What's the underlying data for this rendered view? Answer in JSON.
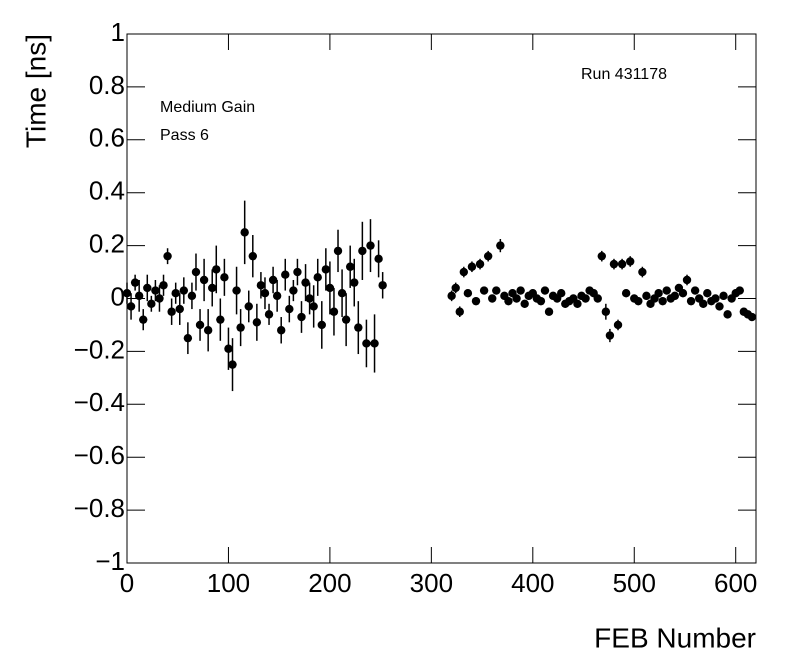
{
  "chart_data": {
    "type": "errorbar-scatter",
    "xlabel": "FEB Number",
    "ylabel": "Time [ns]",
    "annotations": [
      "Medium Gain",
      "Pass 6",
      "Run 431178"
    ],
    "xlim": [
      0,
      620
    ],
    "ylim": [
      -1,
      1
    ],
    "xticks": [
      0,
      100,
      200,
      300,
      400,
      500,
      600
    ],
    "yticks": [
      {
        "value": -1,
        "label": "−1"
      },
      {
        "value": -0.8,
        "label": "−0.8"
      },
      {
        "value": -0.6,
        "label": "−0.6"
      },
      {
        "value": -0.4,
        "label": "−0.4"
      },
      {
        "value": -0.2,
        "label": "−0.2"
      },
      0,
      0.2,
      0.4,
      0.6,
      0.8,
      1
    ],
    "color": "#000000",
    "x": [
      0,
      4,
      8,
      12,
      16,
      20,
      24,
      28,
      32,
      36,
      40,
      44,
      48,
      52,
      56,
      60,
      64,
      68,
      72,
      76,
      80,
      84,
      88,
      92,
      96,
      100,
      104,
      108,
      112,
      116,
      120,
      124,
      128,
      132,
      136,
      140,
      144,
      148,
      152,
      156,
      160,
      164,
      168,
      172,
      176,
      180,
      184,
      188,
      192,
      196,
      200,
      204,
      208,
      212,
      216,
      220,
      224,
      228,
      232,
      236,
      240,
      244,
      248,
      252,
      320,
      324,
      328,
      332,
      336,
      340,
      344,
      348,
      352,
      356,
      360,
      364,
      368,
      372,
      376,
      380,
      384,
      388,
      392,
      396,
      400,
      404,
      408,
      412,
      416,
      420,
      424,
      428,
      432,
      436,
      440,
      444,
      448,
      452,
      456,
      460,
      464,
      468,
      472,
      476,
      480,
      484,
      488,
      492,
      496,
      500,
      504,
      508,
      512,
      516,
      520,
      524,
      528,
      532,
      536,
      540,
      544,
      548,
      552,
      556,
      560,
      564,
      568,
      572,
      576,
      580,
      584,
      588,
      592,
      596,
      600,
      604,
      608,
      612,
      616
    ],
    "values": [
      0.02,
      -0.03,
      0.06,
      0.01,
      -0.08,
      0.04,
      -0.02,
      0.03,
      0.0,
      0.05,
      0.16,
      -0.05,
      0.02,
      -0.04,
      0.03,
      -0.15,
      0.01,
      0.1,
      -0.1,
      0.07,
      -0.12,
      0.04,
      0.11,
      -0.08,
      0.08,
      -0.19,
      -0.25,
      0.03,
      -0.11,
      0.25,
      -0.03,
      0.16,
      -0.09,
      0.05,
      0.02,
      -0.06,
      0.07,
      0.01,
      -0.12,
      0.09,
      -0.04,
      0.03,
      0.1,
      -0.07,
      0.06,
      0.0,
      -0.03,
      0.08,
      -0.1,
      0.11,
      0.04,
      -0.05,
      0.18,
      0.02,
      -0.08,
      0.12,
      0.06,
      -0.11,
      0.18,
      -0.17,
      0.2,
      -0.17,
      0.15,
      0.05,
      0.01,
      0.04,
      -0.05,
      0.1,
      0.02,
      0.12,
      -0.01,
      0.13,
      0.03,
      0.16,
      0.0,
      0.03,
      0.2,
      0.01,
      -0.01,
      0.02,
      0.0,
      0.03,
      -0.02,
      0.01,
      0.02,
      0.0,
      -0.01,
      0.03,
      -0.05,
      0.01,
      0.0,
      0.02,
      -0.02,
      -0.01,
      0.0,
      -0.02,
      0.01,
      0.0,
      0.03,
      0.02,
      0.0,
      0.16,
      -0.05,
      -0.14,
      0.13,
      -0.1,
      0.13,
      0.02,
      0.14,
      0.0,
      -0.01,
      0.1,
      0.01,
      -0.02,
      0.0,
      0.02,
      -0.01,
      0.03,
      0.0,
      0.01,
      0.04,
      0.02,
      0.07,
      -0.01,
      0.03,
      0.0,
      -0.02,
      0.02,
      -0.01,
      0.0,
      -0.03,
      0.01,
      -0.06,
      0.0,
      0.02,
      0.03,
      -0.05,
      -0.06,
      -0.07
    ],
    "errors": [
      0.04,
      0.05,
      0.03,
      0.06,
      0.04,
      0.05,
      0.03,
      0.04,
      0.05,
      0.04,
      0.03,
      0.05,
      0.04,
      0.06,
      0.05,
      0.06,
      0.05,
      0.07,
      0.06,
      0.08,
      0.08,
      0.07,
      0.09,
      0.08,
      0.07,
      0.08,
      0.1,
      0.09,
      0.07,
      0.12,
      0.06,
      0.08,
      0.07,
      0.05,
      0.06,
      0.04,
      0.05,
      0.06,
      0.05,
      0.06,
      0.05,
      0.04,
      0.05,
      0.06,
      0.07,
      0.06,
      0.08,
      0.07,
      0.09,
      0.08,
      0.1,
      0.09,
      0.08,
      0.09,
      0.1,
      0.08,
      0.09,
      0.1,
      0.11,
      0.09,
      0.1,
      0.11,
      0.07,
      0.05,
      0.02,
      0.02,
      0.02,
      0.02,
      0.015,
      0.02,
      0.015,
      0.02,
      0.015,
      0.02,
      0.015,
      0.015,
      0.025,
      0.015,
      0.015,
      0.015,
      0.015,
      0.015,
      0.015,
      0.015,
      0.015,
      0.015,
      0.015,
      0.015,
      0.015,
      0.015,
      0.015,
      0.015,
      0.015,
      0.015,
      0.015,
      0.015,
      0.015,
      0.015,
      0.015,
      0.015,
      0.015,
      0.02,
      0.03,
      0.025,
      0.02,
      0.02,
      0.02,
      0.015,
      0.02,
      0.015,
      0.015,
      0.02,
      0.015,
      0.015,
      0.015,
      0.015,
      0.015,
      0.015,
      0.015,
      0.015,
      0.015,
      0.015,
      0.02,
      0.015,
      0.015,
      0.015,
      0.015,
      0.015,
      0.015,
      0.015,
      0.015,
      0.015,
      0.015,
      0.015,
      0.015,
      0.015,
      0.015,
      0.015,
      0.015
    ]
  }
}
